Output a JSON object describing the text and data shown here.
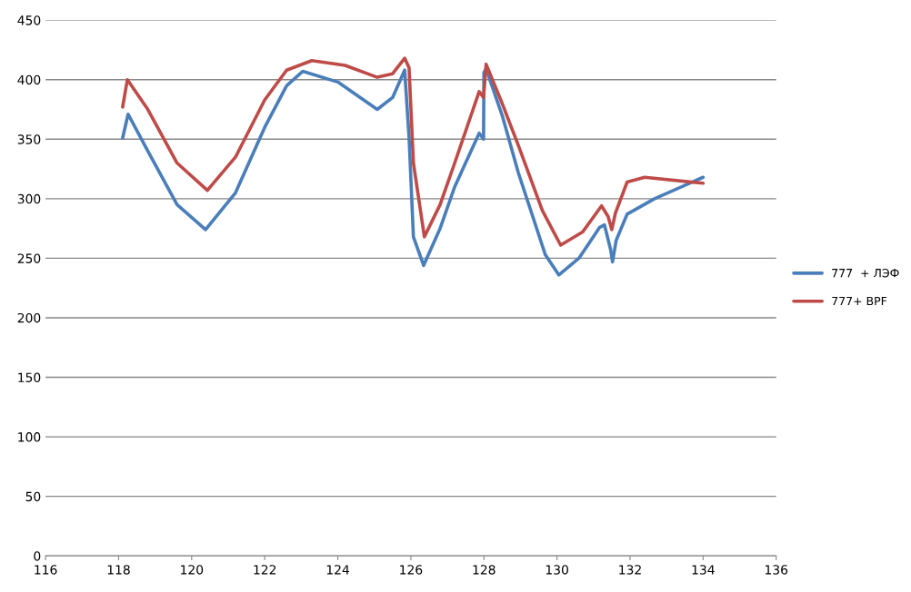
{
  "chart_data": {
    "type": "line",
    "xlim": [
      116,
      136
    ],
    "xticks": [
      116,
      118,
      120,
      122,
      124,
      126,
      128,
      130,
      132,
      134,
      136
    ],
    "ylim": [
      0,
      450
    ],
    "yticks": [
      0,
      50,
      100,
      150,
      200,
      250,
      300,
      350,
      400,
      450
    ],
    "grid": "y",
    "legend": "right",
    "marker": "none",
    "line_style": "solid",
    "series": [
      {
        "name": "777  + ЛЭФ",
        "color": "#4a7ebb",
        "x": [
          118.11,
          118.26,
          118.8,
          119.6,
          120.38,
          121.2,
          122,
          122.6,
          123.04,
          124,
          125.08,
          125.5,
          125.83,
          125.95,
          126.07,
          126.35,
          126.8,
          127.2,
          127.87,
          127.99,
          128.0,
          128.06,
          128.5,
          128.94,
          129.68,
          130.05,
          130.6,
          131.17,
          131.3,
          131.47,
          131.52,
          131.62,
          131.92,
          132.67,
          134.0
        ],
        "values": [
          351,
          371,
          340,
          295,
          274,
          305,
          360,
          395,
          407,
          398,
          375,
          385,
          408,
          352,
          268,
          244,
          275,
          310,
          355,
          350,
          406,
          409,
          370,
          322,
          253,
          236,
          250,
          276,
          278,
          257,
          247,
          265,
          287,
          300,
          318
        ]
      },
      {
        "name": "777+ BPF",
        "color": "#be4b48",
        "x": [
          118.11,
          118.24,
          118.8,
          119.6,
          120.43,
          121.2,
          122,
          122.6,
          123.29,
          124.2,
          125.08,
          125.5,
          125.83,
          125.95,
          126.07,
          126.37,
          126.8,
          127.2,
          127.87,
          127.99,
          128.06,
          128.5,
          128.94,
          129.6,
          130.1,
          130.7,
          131.22,
          131.4,
          131.5,
          131.6,
          131.92,
          132.4,
          134.0
        ],
        "values": [
          377,
          400,
          375,
          330,
          307,
          335,
          383,
          408,
          416,
          412,
          402,
          405,
          418,
          410,
          330,
          268,
          295,
          330,
          390,
          385,
          413,
          380,
          345,
          290,
          261,
          272,
          294,
          285,
          274,
          288,
          314,
          318,
          313
        ]
      }
    ]
  }
}
